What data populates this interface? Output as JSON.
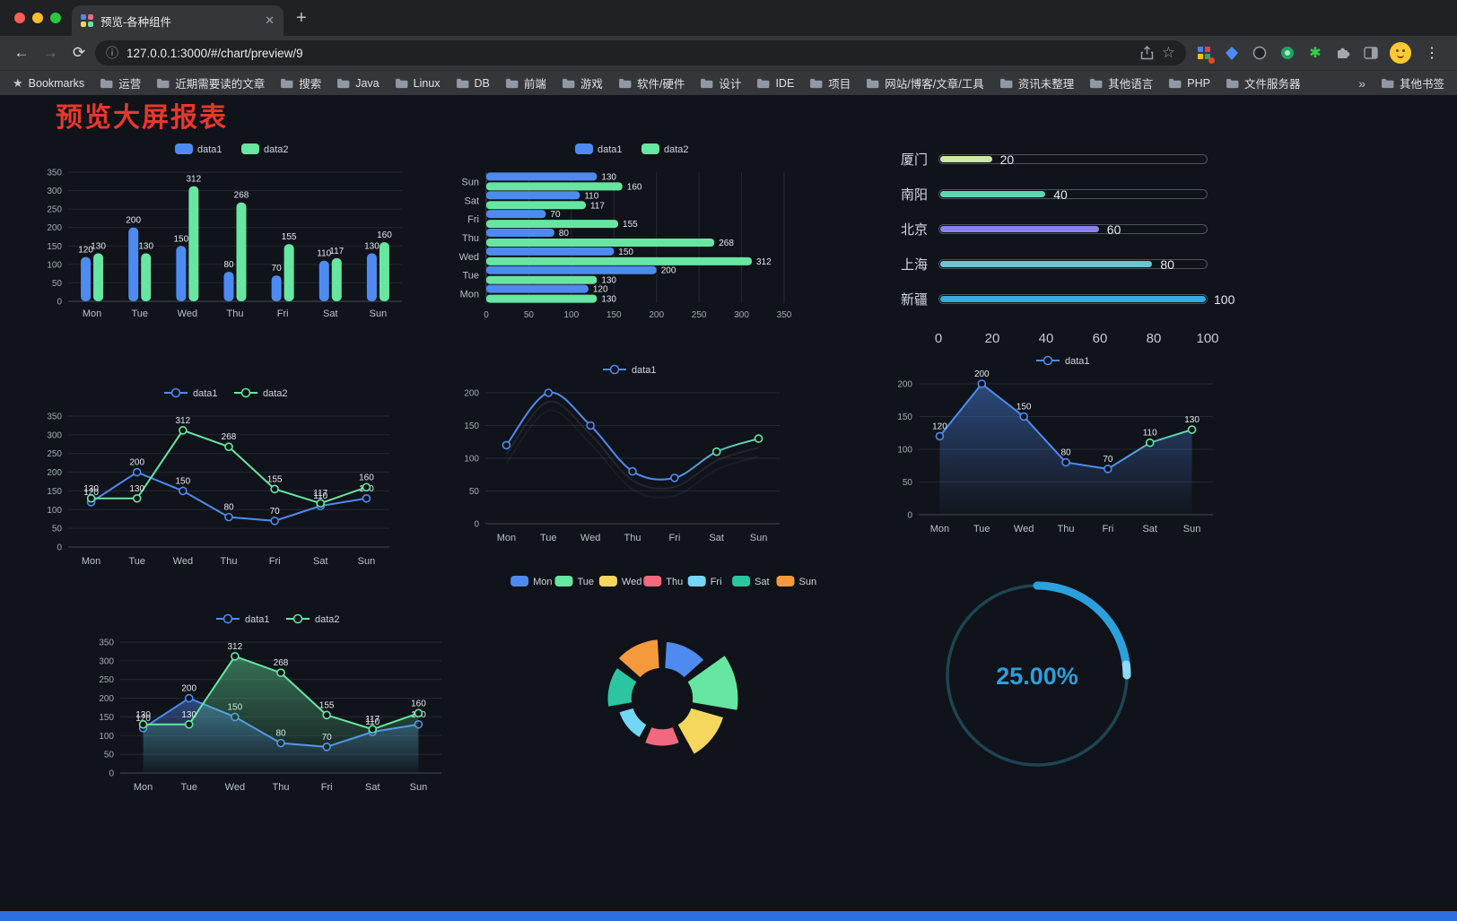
{
  "browser": {
    "tab_title": "预览-各种组件",
    "url": "127.0.0.1:3000/#/chart/preview/9",
    "bookmarks_label": "Bookmarks",
    "bookmarks": [
      "运营",
      "近期需要读的文章",
      "搜索",
      "Java",
      "Linux",
      "DB",
      "前端",
      "游戏",
      "软件/硬件",
      "设计",
      "IDE",
      "项目",
      "网站/博客/文章/工具",
      "资讯未整理",
      "其他语言",
      "PHP",
      "文件服务器"
    ],
    "overflow_chevron": "»",
    "other_bookmarks": "其他书签"
  },
  "page": {
    "title": "预览大屏报表"
  },
  "chart_data": [
    {
      "id": "bar-vertical",
      "type": "bar",
      "categories": [
        "Mon",
        "Tue",
        "Wed",
        "Thu",
        "Fri",
        "Sat",
        "Sun"
      ],
      "series": [
        {
          "name": "data1",
          "color": "#4e8bf0",
          "values": [
            120,
            200,
            150,
            80,
            70,
            110,
            130
          ]
        },
        {
          "name": "data2",
          "color": "#67e6a2",
          "values": [
            130,
            130,
            312,
            268,
            155,
            117,
            160
          ]
        }
      ],
      "ylim": [
        0,
        350
      ],
      "yticks": [
        0,
        50,
        100,
        150,
        200,
        250,
        300,
        350
      ],
      "legend_position": "top",
      "value_labels": true
    },
    {
      "id": "bar-horizontal",
      "type": "bar-horizontal",
      "categories": [
        "Mon",
        "Tue",
        "Wed",
        "Thu",
        "Fri",
        "Sat",
        "Sun"
      ],
      "category_order_top_to_bottom": [
        "Sun",
        "Sat",
        "Fri",
        "Thu",
        "Wed",
        "Tue",
        "Mon"
      ],
      "series": [
        {
          "name": "data1",
          "color": "#4e8bf0",
          "values": [
            120,
            200,
            150,
            80,
            70,
            110,
            130
          ]
        },
        {
          "name": "data2",
          "color": "#67e6a2",
          "values": [
            130,
            130,
            312,
            268,
            155,
            117,
            160
          ]
        }
      ],
      "xlim": [
        0,
        350
      ],
      "xticks": [
        0,
        50,
        100,
        150,
        200,
        250,
        300,
        350
      ],
      "legend_position": "top",
      "value_labels": true
    },
    {
      "id": "city-progress",
      "type": "progress-bars",
      "items": [
        {
          "label": "厦门",
          "value": 20,
          "color": "#cde9a1"
        },
        {
          "label": "南阳",
          "value": 40,
          "color": "#5fd6ad"
        },
        {
          "label": "北京",
          "value": 60,
          "color": "#8a82ec"
        },
        {
          "label": "上海",
          "value": 80,
          "color": "#6fc3d6"
        },
        {
          "label": "新疆",
          "value": 100,
          "color": "#35ace2"
        }
      ],
      "xlim": [
        0,
        100
      ],
      "xticks": [
        0,
        20,
        40,
        60,
        80,
        100
      ]
    },
    {
      "id": "line-two-series",
      "type": "line",
      "categories": [
        "Mon",
        "Tue",
        "Wed",
        "Thu",
        "Fri",
        "Sat",
        "Sun"
      ],
      "series": [
        {
          "name": "data1",
          "color": "#4e8bf0",
          "values": [
            120,
            200,
            150,
            80,
            70,
            110,
            130
          ]
        },
        {
          "name": "data2",
          "color": "#67e6a2",
          "values": [
            130,
            130,
            312,
            268,
            155,
            117,
            160
          ]
        }
      ],
      "ylim": [
        0,
        350
      ],
      "yticks": [
        0,
        50,
        100,
        150,
        200,
        250,
        300,
        350
      ],
      "legend_position": "top",
      "value_labels": true
    },
    {
      "id": "line-gradient",
      "type": "line",
      "smooth": true,
      "shadow": true,
      "categories": [
        "Mon",
        "Tue",
        "Wed",
        "Thu",
        "Fri",
        "Sat",
        "Sun"
      ],
      "series": [
        {
          "name": "data1",
          "color": "#4e8bf0",
          "color_end": "#67e6a2",
          "values": [
            120,
            200,
            150,
            80,
            70,
            110,
            130
          ]
        }
      ],
      "ylim": [
        0,
        200
      ],
      "yticks": [
        0,
        50,
        100,
        150,
        200
      ],
      "legend_position": "top",
      "value_labels": false
    },
    {
      "id": "line-area",
      "type": "line",
      "categories": [
        "Mon",
        "Tue",
        "Wed",
        "Thu",
        "Fri",
        "Sat",
        "Sun"
      ],
      "series": [
        {
          "name": "data1",
          "color": "#4e8bf0",
          "color_end": "#67e6a2",
          "area": true,
          "values": [
            120,
            200,
            150,
            80,
            70,
            110,
            130
          ]
        }
      ],
      "ylim": [
        0,
        200
      ],
      "yticks": [
        0,
        50,
        100,
        150,
        200
      ],
      "legend_position": "top",
      "value_labels": true
    },
    {
      "id": "line-two-series-area",
      "type": "line",
      "categories": [
        "Mon",
        "Tue",
        "Wed",
        "Thu",
        "Fri",
        "Sat",
        "Sun"
      ],
      "series": [
        {
          "name": "data1",
          "color": "#4e8bf0",
          "area": true,
          "values": [
            120,
            200,
            150,
            80,
            70,
            110,
            130
          ]
        },
        {
          "name": "data2",
          "color": "#67e6a2",
          "area": true,
          "values": [
            130,
            130,
            312,
            268,
            155,
            117,
            160
          ]
        }
      ],
      "ylim": [
        0,
        350
      ],
      "yticks": [
        0,
        50,
        100,
        150,
        200,
        250,
        300,
        350
      ],
      "legend_position": "top",
      "value_labels": true
    },
    {
      "id": "rose-pie",
      "type": "pie",
      "pie_style": "rose",
      "categories": [
        "Mon",
        "Tue",
        "Wed",
        "Thu",
        "Fri",
        "Sat",
        "Sun"
      ],
      "values": [
        120,
        200,
        150,
        80,
        70,
        110,
        130
      ],
      "colors": [
        "#4e8bf0",
        "#67e6a2",
        "#f5d75e",
        "#f0697e",
        "#74d6f7",
        "#2cc5a2",
        "#f59a3c"
      ],
      "legend_position": "top",
      "inner_radius_ratio": 0.38
    },
    {
      "id": "gauge",
      "type": "gauge",
      "value": 25,
      "label": "25.00%",
      "color": "#2ba0dd",
      "track_color": "#1d4552"
    }
  ]
}
